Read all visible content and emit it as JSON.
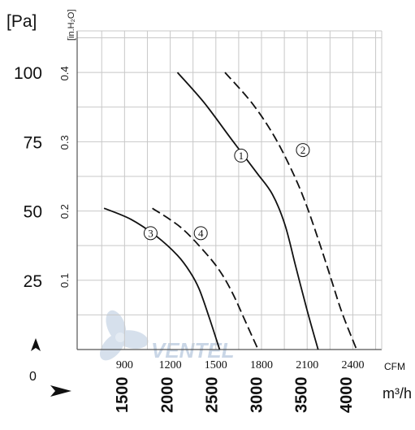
{
  "chart_data": {
    "type": "line",
    "axes": {
      "y_pa": {
        "unit": "[Pa]",
        "ticks": [
          "25",
          "50",
          "75",
          "100"
        ],
        "ylim": [
          0,
          115
        ]
      },
      "y_inh2o": {
        "unit": "[in.H₂O]",
        "ticks": [
          "0.1",
          "0.2",
          "0.3",
          "0.4"
        ]
      },
      "x_cfm": {
        "unit": "CFM",
        "ticks": [
          "900",
          "1200",
          "1500",
          "1800",
          "2100",
          "2400"
        ]
      },
      "x_m3h": {
        "unit": "m³/h",
        "ticks": [
          "1500",
          "2000",
          "2500",
          "3000",
          "3500",
          "4000"
        ],
        "xlim": [
          1000,
          4400
        ]
      },
      "zero_label": "0"
    },
    "grid": true,
    "series": [
      {
        "id": "1",
        "label": "1",
        "style": "solid",
        "points": [
          [
            2120,
            100
          ],
          [
            2420,
            89
          ],
          [
            2720,
            76
          ],
          [
            3000,
            64
          ],
          [
            3180,
            56
          ],
          [
            3320,
            45
          ],
          [
            3440,
            30
          ],
          [
            3560,
            15
          ],
          [
            3690,
            0
          ]
        ]
      },
      {
        "id": "2",
        "label": "2",
        "style": "dashed",
        "points": [
          [
            2650,
            100
          ],
          [
            2950,
            89
          ],
          [
            3200,
            77
          ],
          [
            3420,
            63
          ],
          [
            3560,
            52
          ],
          [
            3720,
            37
          ],
          [
            3840,
            25
          ],
          [
            3960,
            13
          ],
          [
            4120,
            0
          ]
        ]
      },
      {
        "id": "3",
        "label": "3",
        "style": "solid",
        "points": [
          [
            1300,
            51
          ],
          [
            1600,
            47
          ],
          [
            1880,
            41
          ],
          [
            2120,
            34
          ],
          [
            2260,
            28
          ],
          [
            2360,
            22
          ],
          [
            2470,
            12
          ],
          [
            2590,
            0
          ]
        ]
      },
      {
        "id": "4",
        "label": "4",
        "style": "dashed",
        "points": [
          [
            1840,
            51
          ],
          [
            2160,
            44
          ],
          [
            2430,
            35
          ],
          [
            2600,
            28
          ],
          [
            2740,
            20
          ],
          [
            2880,
            10
          ],
          [
            3020,
            0
          ]
        ]
      }
    ]
  },
  "watermark": "VENTEL",
  "colors": {
    "line": "#111111",
    "grid": "#c8c8c8",
    "frame": "#555555",
    "watermark": "#c9d6e6"
  }
}
